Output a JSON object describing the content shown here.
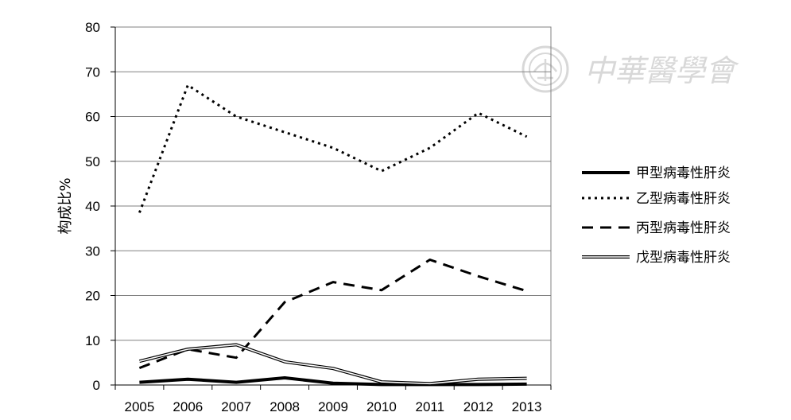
{
  "chart_data": {
    "type": "line",
    "title": "",
    "xlabel": "",
    "ylabel": "构成比%",
    "ylim": [
      0,
      80
    ],
    "yticks": [
      0,
      10,
      20,
      30,
      40,
      50,
      60,
      70,
      80
    ],
    "categories": [
      "2005",
      "2006",
      "2007",
      "2008",
      "2009",
      "2010",
      "2011",
      "2012",
      "2013"
    ],
    "grid": true,
    "legend_position": "right",
    "series": [
      {
        "name": "甲型病毒性肝炎",
        "style": "solid-thick",
        "color": "#000000",
        "values": [
          0.6,
          1.3,
          0.6,
          1.6,
          0.4,
          0.1,
          0.1,
          0.1,
          0.2
        ]
      },
      {
        "name": "乙型病毒性肝炎",
        "style": "dotted",
        "color": "#000000",
        "values": [
          38.5,
          67,
          60,
          56.5,
          53,
          47.8,
          53,
          60.8,
          55.5
        ]
      },
      {
        "name": "丙型病毒性肝炎",
        "style": "dashed",
        "color": "#000000",
        "values": [
          3.8,
          8,
          6.1,
          18.5,
          23,
          21.2,
          28,
          24.3,
          21
        ]
      },
      {
        "name": "戊型病毒性肝炎",
        "style": "double",
        "color": "#000000",
        "values": [
          5.3,
          8,
          9,
          5.2,
          3.7,
          0.7,
          0.3,
          1.3,
          1.5
        ]
      }
    ]
  },
  "watermark": {
    "text": "中華醫學會"
  }
}
